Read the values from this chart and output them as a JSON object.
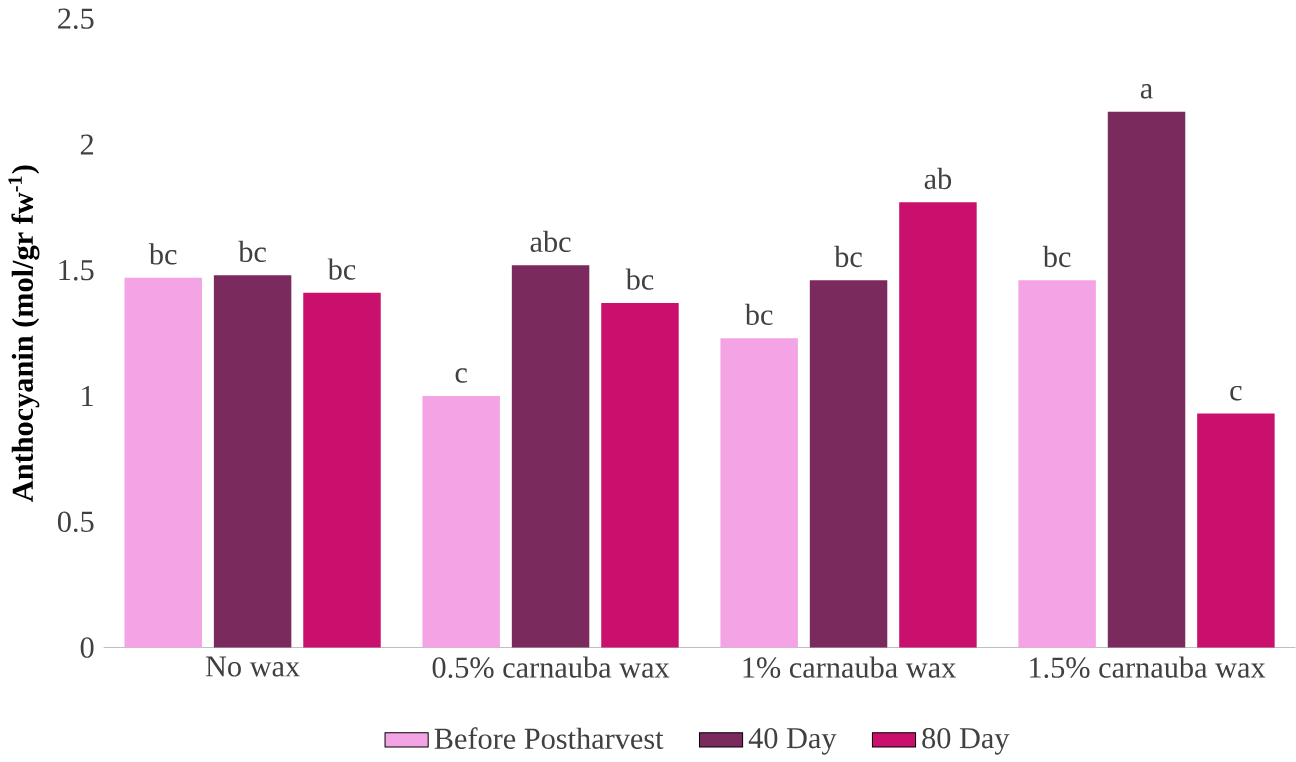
{
  "chart_data": {
    "type": "bar",
    "ylabel": "Anthocyanin (mol/gr fw$^{-1}$)",
    "categories": [
      "No wax",
      "0.5% carnauba wax",
      "1% carnauba wax",
      "1.5% carnauba wax"
    ],
    "series": [
      {
        "name": "Before Postharvest",
        "color": "#f4a3e4",
        "values": [
          1.47,
          1.0,
          1.23,
          1.46
        ],
        "value_labels": [
          "bc",
          "c",
          "bc",
          "bc"
        ]
      },
      {
        "name": "40 Day",
        "color": "#7a2a5c",
        "values": [
          1.48,
          1.52,
          1.46,
          2.13
        ],
        "value_labels": [
          "bc",
          "abc",
          "bc",
          "a"
        ]
      },
      {
        "name": "80 Day",
        "color": "#c8106c",
        "values": [
          1.41,
          1.37,
          1.77,
          0.93
        ],
        "value_labels": [
          "bc",
          "bc",
          "ab",
          "c"
        ]
      }
    ],
    "ylim": [
      0,
      2.5
    ],
    "yticks": [
      0,
      0.5,
      1,
      1.5,
      2,
      2.5
    ],
    "grid": false,
    "legend": "bottom"
  }
}
